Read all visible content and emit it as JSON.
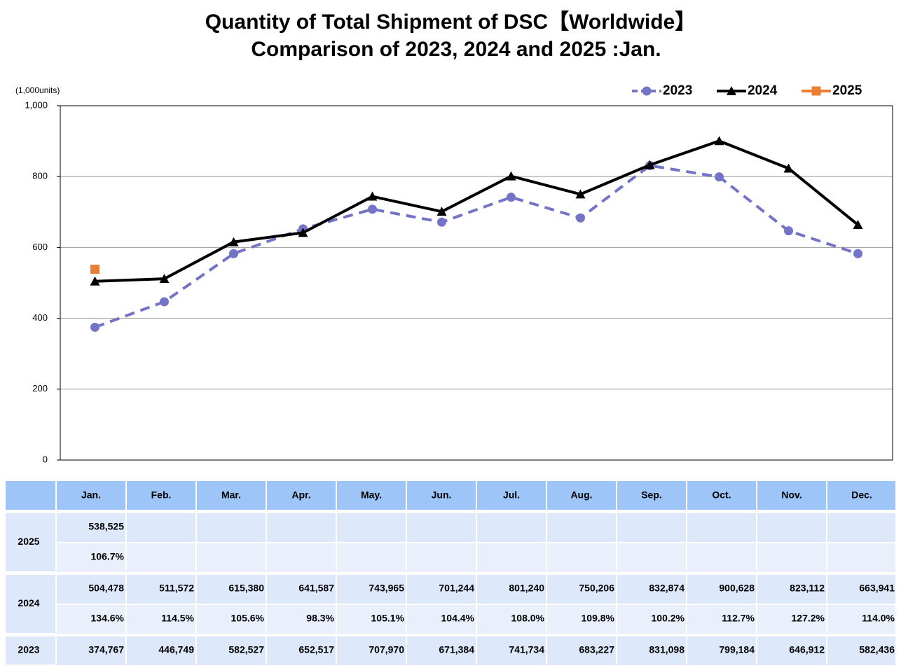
{
  "chart_data": {
    "type": "line",
    "title": "Quantity of Total Shipment of DSC【Worldwide】",
    "subtitle": "Comparison of 2023, 2024 and 2025 :Jan.",
    "y_label": "(1,000units)",
    "categories": [
      "Jan.",
      "Feb.",
      "Mar.",
      "Apr.",
      "May.",
      "Jun.",
      "Jul.",
      "Aug.",
      "Sep.",
      "Oct.",
      "Nov.",
      "Dec."
    ],
    "ylim": [
      0,
      1000
    ],
    "yticks": [
      0,
      200,
      400,
      600,
      800,
      {
        "value": 1000,
        "label": "1,000"
      }
    ],
    "grid": true,
    "legend": "top-right",
    "series": [
      {
        "name": "2023",
        "color": "#7373c8",
        "marker": "circle",
        "dashed": true,
        "values": [
          374.767,
          446.749,
          582.527,
          652.517,
          707.97,
          671.384,
          741.734,
          683.227,
          831.098,
          799.184,
          646.912,
          582.436
        ],
        "value_labels": [
          "374,767",
          "446,749",
          "582,527",
          "652,517",
          "707,970",
          "671,384",
          "741,734",
          "683,227",
          "831,098",
          "799,184",
          "646,912",
          "582,436"
        ]
      },
      {
        "name": "2024",
        "color": "#000000",
        "marker": "triangle",
        "dashed": false,
        "values": [
          504.478,
          511.572,
          615.38,
          641.587,
          743.965,
          701.244,
          801.24,
          750.206,
          832.874,
          900.628,
          823.112,
          663.941
        ],
        "value_labels": [
          "504,478",
          "511,572",
          "615,380",
          "641,587",
          "743,965",
          "701,244",
          "801,240",
          "750,206",
          "832,874",
          "900,628",
          "823,112",
          "663,941"
        ],
        "yoy_labels": [
          "134.6%",
          "114.5%",
          "105.6%",
          "98.3%",
          "105.1%",
          "104.4%",
          "108.0%",
          "109.8%",
          "100.2%",
          "112.7%",
          "127.2%",
          "114.0%"
        ]
      },
      {
        "name": "2025",
        "color": "#ed7d31",
        "marker": "square",
        "dashed": false,
        "values": [
          538.525,
          null,
          null,
          null,
          null,
          null,
          null,
          null,
          null,
          null,
          null,
          null
        ],
        "value_labels": [
          "538,525",
          null,
          null,
          null,
          null,
          null,
          null,
          null,
          null,
          null,
          null,
          null
        ],
        "yoy_labels": [
          "106.7%",
          null,
          null,
          null,
          null,
          null,
          null,
          null,
          null,
          null,
          null,
          null
        ]
      }
    ]
  }
}
